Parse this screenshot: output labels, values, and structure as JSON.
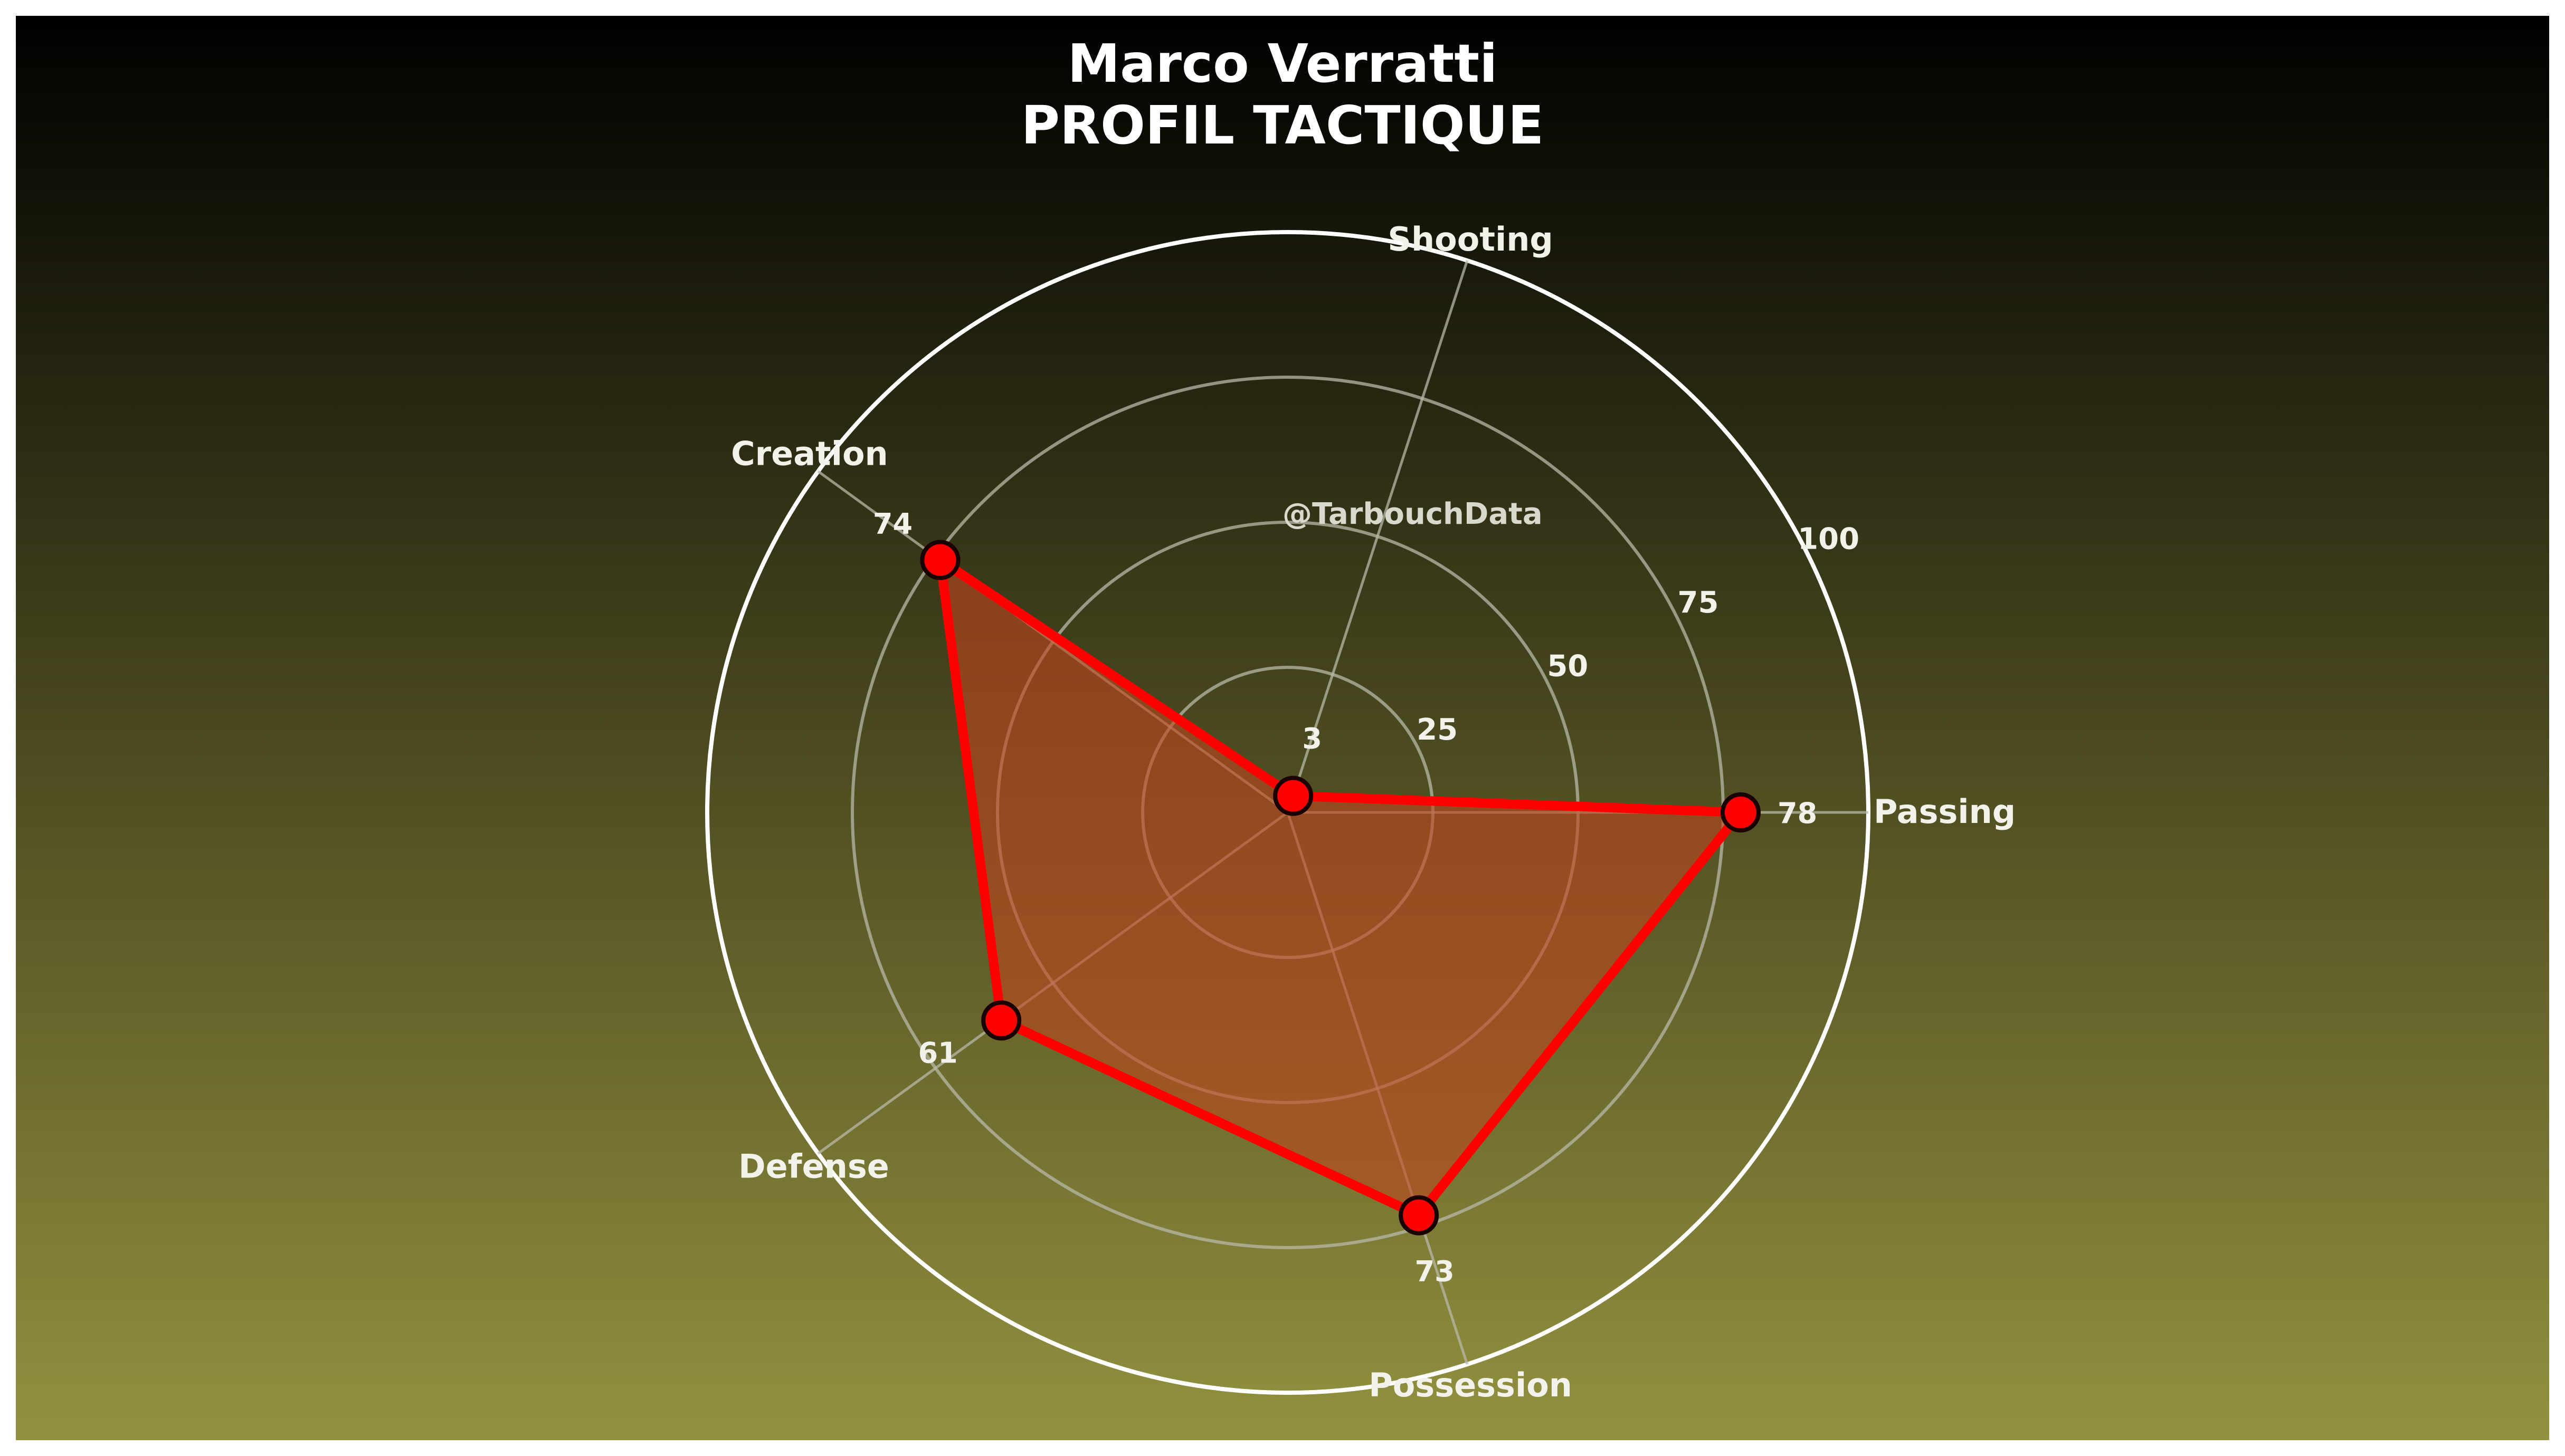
{
  "title": "Marco Verratti",
  "subtitle": "PROFIL TACTIQUE",
  "watermark": "@TarbouchData",
  "colors": {
    "background_top": "#000000",
    "background_bottom": "#93913f",
    "series": "#ff0000",
    "fill": "#c0461e",
    "grid": "#b8b8a8",
    "outer_ring": "#ffffff"
  },
  "chart_data": {
    "type": "radar",
    "categories": [
      "Passing",
      "Shooting",
      "Creation",
      "Defense",
      "Possession"
    ],
    "values": [
      78,
      3,
      74,
      61,
      73
    ],
    "rlim": [
      0,
      100
    ],
    "radial_ticks": [
      25,
      50,
      75,
      100
    ],
    "radial_tick_labels": [
      "25",
      "50",
      "75",
      "100"
    ],
    "grid": true
  }
}
